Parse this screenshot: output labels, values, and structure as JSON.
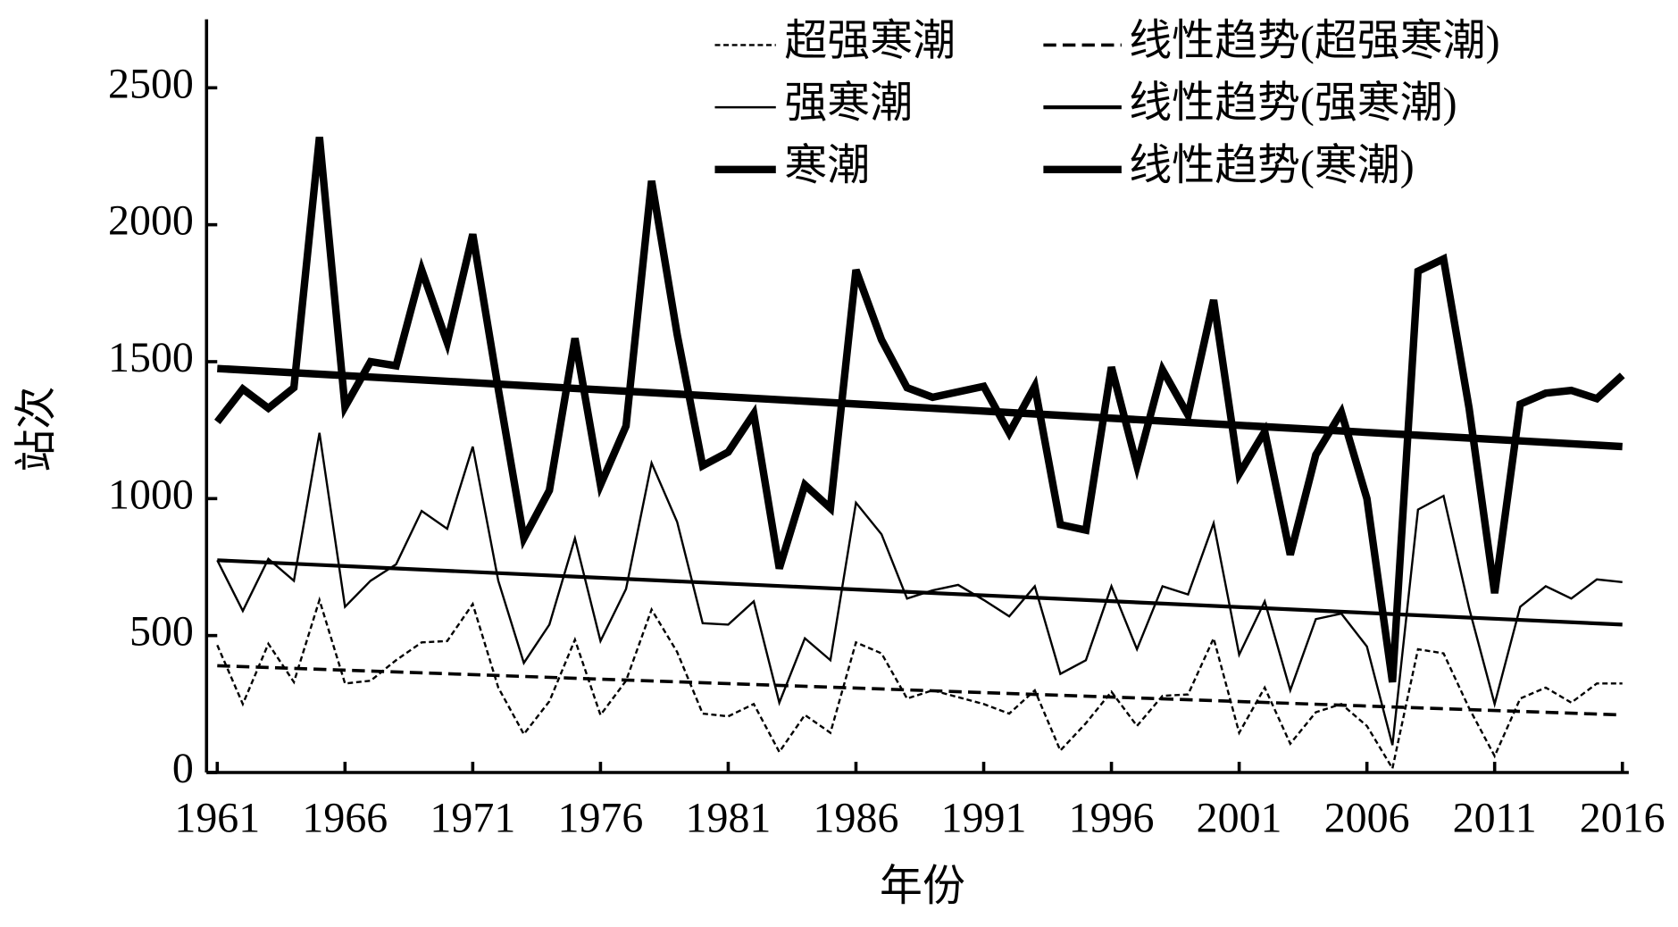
{
  "chart_data": {
    "type": "line",
    "xlabel": "年份",
    "ylabel": "站次",
    "xlim": [
      1960.58,
      2016.25
    ],
    "ylim": [
      0,
      2750
    ],
    "xticks": [
      1961,
      1966,
      1971,
      1976,
      1981,
      1986,
      1991,
      1996,
      2001,
      2006,
      2011,
      2016
    ],
    "yticks": [
      0,
      500,
      1000,
      1500,
      2000,
      2500
    ],
    "x": [
      1961,
      1962,
      1963,
      1964,
      1965,
      1966,
      1967,
      1968,
      1969,
      1970,
      1971,
      1972,
      1973,
      1974,
      1975,
      1976,
      1977,
      1978,
      1979,
      1980,
      1981,
      1982,
      1983,
      1984,
      1985,
      1986,
      1987,
      1988,
      1989,
      1990,
      1991,
      1992,
      1993,
      1994,
      1995,
      1996,
      1997,
      1998,
      1999,
      2000,
      2001,
      2002,
      2003,
      2004,
      2005,
      2006,
      2007,
      2008,
      2009,
      2010,
      2011,
      2012,
      2013,
      2014,
      2015,
      2016
    ],
    "legend": "upper right",
    "series": [
      {
        "name": "超强寒潮",
        "color": "#000000",
        "style": "dotted",
        "values": [
          465,
          250,
          470,
          330,
          630,
          325,
          335,
          410,
          475,
          480,
          615,
          310,
          140,
          260,
          485,
          210,
          335,
          595,
          440,
          215,
          205,
          250,
          75,
          210,
          145,
          475,
          435,
          270,
          300,
          275,
          250,
          215,
          300,
          80,
          180,
          295,
          170,
          280,
          285,
          490,
          145,
          310,
          105,
          220,
          250,
          170,
          15,
          450,
          435,
          235,
          60,
          270,
          310,
          255,
          325,
          325
        ]
      },
      {
        "name": "线性趋势(超强寒潮)",
        "color": "#000000",
        "style": "dashed",
        "x": [
          1961,
          2016
        ],
        "values": [
          390,
          210
        ]
      },
      {
        "name": "强寒潮",
        "color": "#000000",
        "style": "thin",
        "values": [
          775,
          590,
          780,
          700,
          1240,
          605,
          700,
          760,
          955,
          890,
          1190,
          700,
          400,
          540,
          855,
          480,
          670,
          1130,
          915,
          545,
          540,
          625,
          255,
          490,
          410,
          985,
          870,
          635,
          665,
          685,
          630,
          570,
          680,
          360,
          410,
          680,
          450,
          680,
          650,
          910,
          430,
          625,
          300,
          560,
          580,
          460,
          100,
          960,
          1010,
          600,
          250,
          605,
          680,
          635,
          705,
          695
        ]
      },
      {
        "name": "线性趋势(强寒潮)",
        "color": "#000000",
        "style": "solid",
        "x": [
          1961,
          2016
        ],
        "values": [
          775,
          540
        ]
      },
      {
        "name": "寒潮",
        "color": "#000000",
        "style": "thick",
        "values": [
          1280,
          1400,
          1330,
          1405,
          2320,
          1335,
          1500,
          1485,
          1835,
          1570,
          1965,
          1400,
          855,
          1030,
          1585,
          1050,
          1265,
          2160,
          1600,
          1120,
          1170,
          1310,
          745,
          1050,
          965,
          1835,
          1580,
          1405,
          1370,
          1390,
          1410,
          1240,
          1410,
          905,
          885,
          1480,
          1120,
          1470,
          1305,
          1725,
          1090,
          1245,
          795,
          1160,
          1315,
          1000,
          330,
          1830,
          1875,
          1330,
          655,
          1345,
          1385,
          1395,
          1365,
          1450
        ]
      },
      {
        "name": "线性趋势(寒潮)",
        "color": "#000000",
        "style": "thick",
        "x": [
          1961,
          2016
        ],
        "values": [
          1475,
          1190
        ]
      }
    ]
  }
}
